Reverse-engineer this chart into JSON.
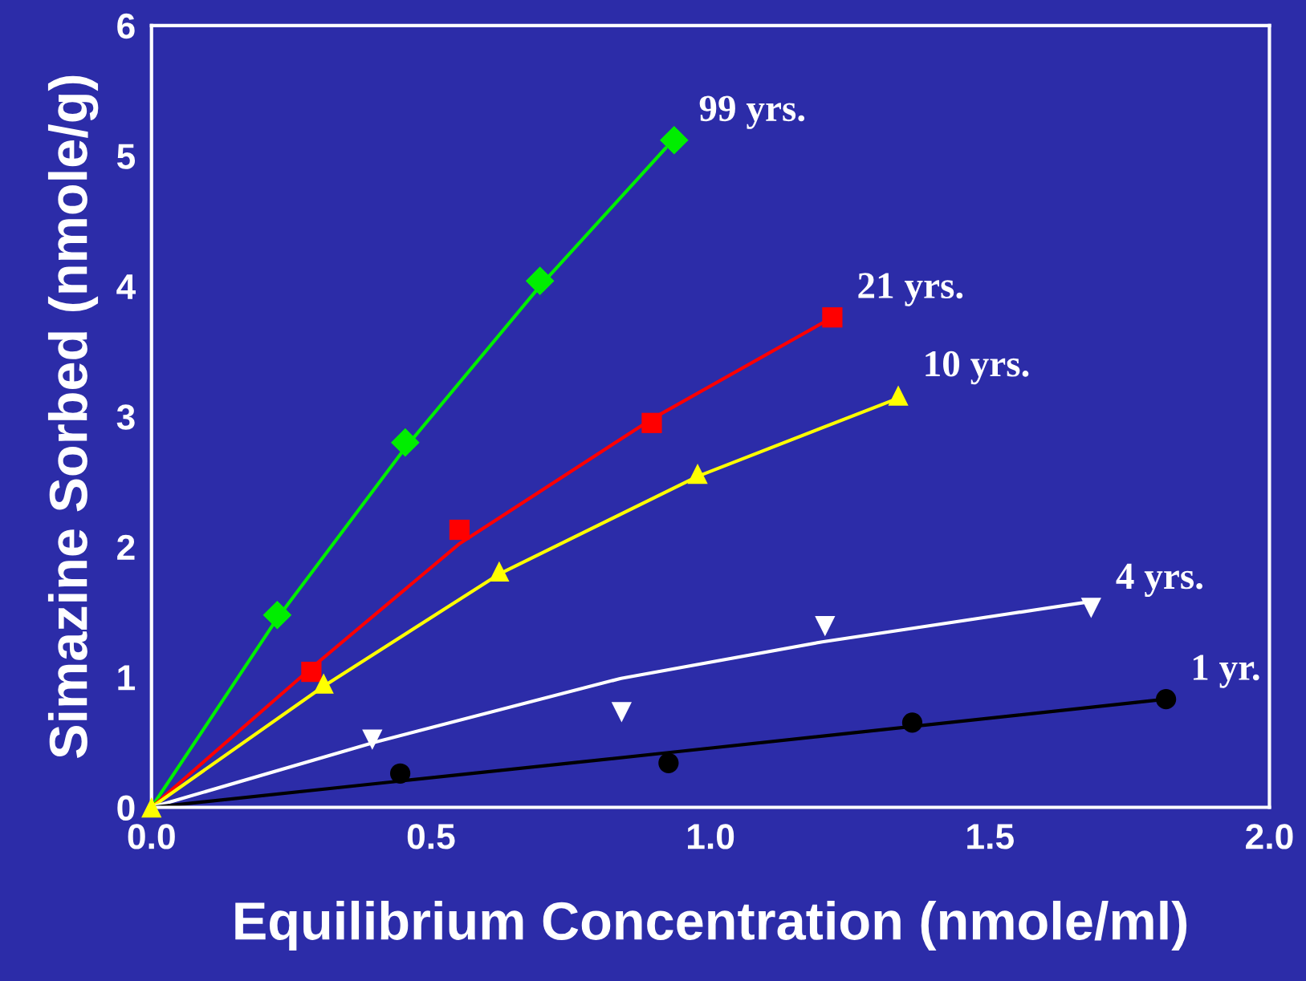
{
  "chart_data": {
    "type": "line",
    "xlabel": "Equilibrium Concentration (nmole/ml)",
    "ylabel": "Simazine Sorbed (nmole/g)",
    "xlim": [
      0,
      2
    ],
    "ylim": [
      0,
      6
    ],
    "xticks": [
      {
        "value": 0,
        "label": "0.0"
      },
      {
        "value": 0.5,
        "label": "0.5"
      },
      {
        "value": 1,
        "label": "1.0"
      },
      {
        "value": 1.5,
        "label": "1.5"
      },
      {
        "value": 2,
        "label": "2.0"
      }
    ],
    "yticks": [
      0,
      1,
      2,
      3,
      4,
      5,
      6
    ],
    "grid": false,
    "legend": false,
    "series": [
      {
        "color": "#00ee00",
        "marker": "none",
        "x": [
          0,
          0.225,
          0.454,
          0.695,
          0.92
        ],
        "values": [
          0,
          1.45,
          2.76,
          4.0,
          5.06
        ]
      },
      {
        "color": "#ff0000",
        "marker": "none",
        "x": [
          0,
          0.286,
          0.55,
          0.895,
          1.218
        ],
        "values": [
          0,
          1.07,
          2.02,
          2.98,
          3.76
        ]
      },
      {
        "color": "#ffff00",
        "marker": "none",
        "x": [
          0,
          0.308,
          0.622,
          0.977,
          1.336
        ],
        "values": [
          0,
          0.93,
          1.79,
          2.54,
          3.14
        ]
      },
      {
        "color": "#ffffff",
        "marker": "none",
        "x": [
          0,
          0.4,
          0.84,
          1.2,
          1.681
        ],
        "values": [
          0,
          0.5,
          0.99,
          1.27,
          1.58
        ]
      },
      {
        "color": "#000000",
        "marker": "none",
        "x": [
          0,
          0.925,
          1.815
        ],
        "values": [
          0,
          0.42,
          0.83
        ]
      },
      {
        "type": "scatter",
        "name": "1 yr.",
        "color": "#000000",
        "marker": "circle",
        "x": [
          0.445,
          0.925,
          1.361,
          1.815
        ],
        "values": [
          0.26,
          0.34,
          0.65,
          0.83
        ]
      },
      {
        "type": "scatter",
        "name": "4 yrs.",
        "color": "#ffffff",
        "marker": "triangle_down",
        "x": [
          0.395,
          0.841,
          1.205,
          1.681
        ],
        "values": [
          0.52,
          0.73,
          1.39,
          1.53
        ]
      },
      {
        "type": "scatter",
        "name": "21 yrs.",
        "color": "#ff0000",
        "marker": "square",
        "x": [
          0.286,
          0.551,
          0.895,
          1.218
        ],
        "values": [
          1.04,
          2.13,
          2.95,
          3.76
        ]
      },
      {
        "type": "scatter",
        "name": "99 yrs.",
        "color": "#00ee00",
        "marker": "diamond",
        "x": [
          0.225,
          0.454,
          0.695,
          0.935
        ],
        "values": [
          1.476,
          2.8,
          4.04,
          5.12
        ]
      },
      {
        "type": "scatter",
        "name": "10 yrs.",
        "color": "#ffff00",
        "marker": "triangle",
        "x": [
          0,
          0.308,
          0.622,
          0.977,
          1.336
        ],
        "values": [
          0,
          0.95,
          1.81,
          2.56,
          3.16
        ]
      }
    ]
  }
}
